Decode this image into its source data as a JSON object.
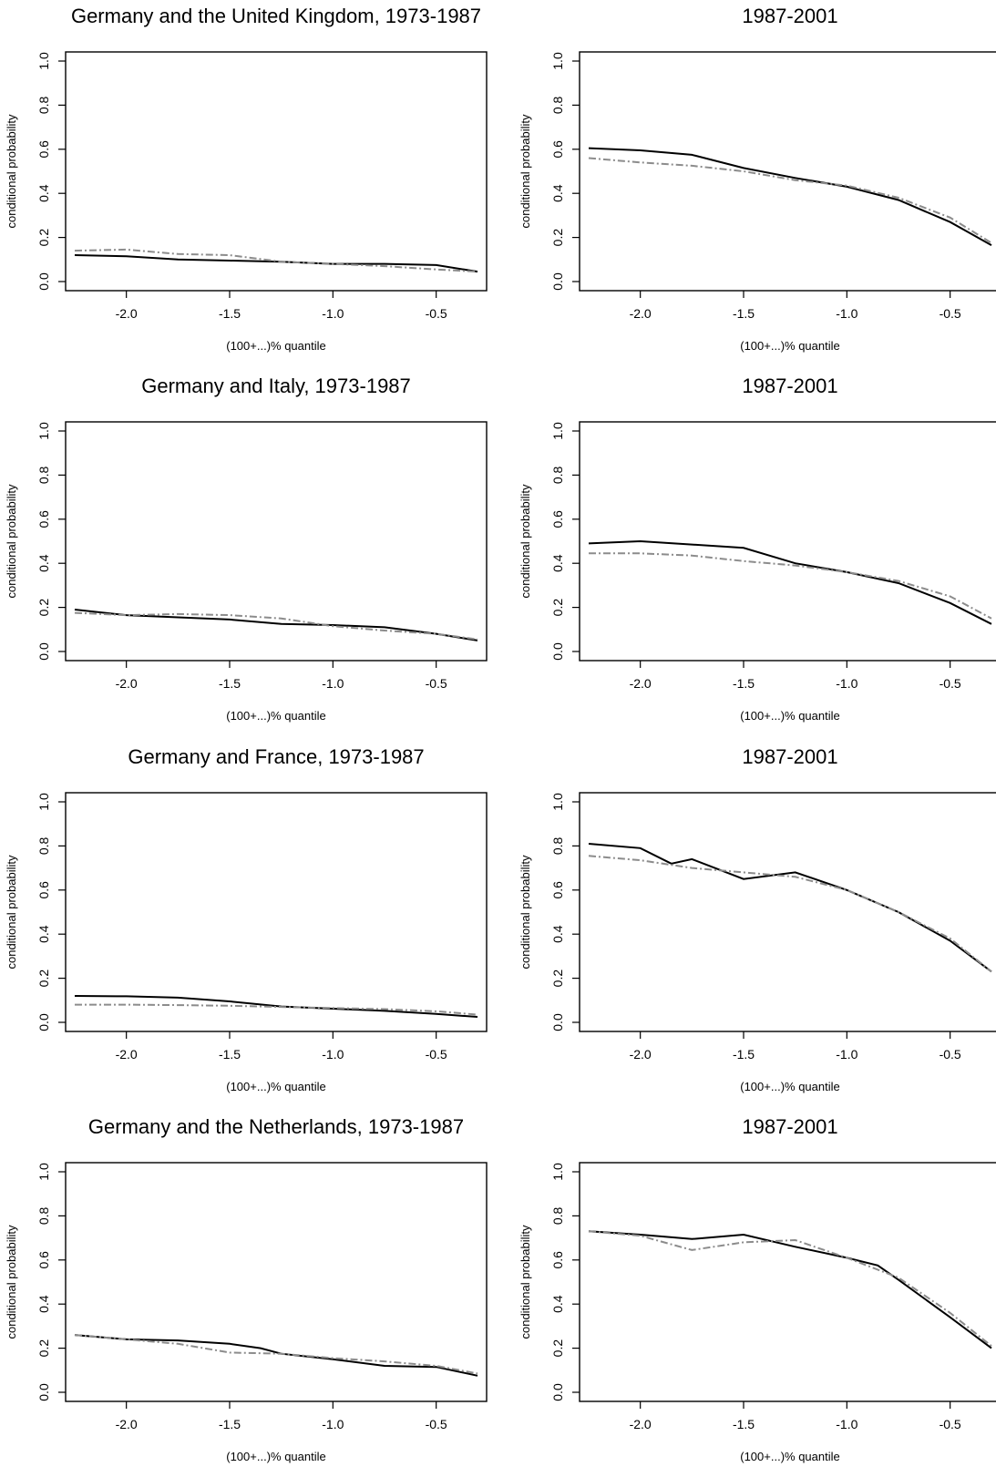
{
  "figure": {
    "panels": [
      {
        "title": "Germany and the United Kingdom, 1973-1987"
      },
      {
        "title": "1987-2001"
      },
      {
        "title": "Germany and Italy, 1973-1987"
      },
      {
        "title": "1987-2001"
      },
      {
        "title": "Germany and France, 1973-1987"
      },
      {
        "title": "1987-2001"
      },
      {
        "title": "Germany and the Netherlands, 1973-1987"
      },
      {
        "title": "1987-2001"
      }
    ]
  },
  "colors": {
    "series_solid": "#000000",
    "series_dashed": "#8c8c8c",
    "axis": "#000000"
  },
  "chart_data": [
    {
      "type": "line",
      "title": "Germany and the United Kingdom, 1973-1987",
      "xlabel": "(100+...)% quantile",
      "ylabel": "conditional probability",
      "xlim": [
        -2.25,
        -0.3
      ],
      "ylim": [
        0,
        1
      ],
      "xticks": [
        "-2.0",
        "-1.5",
        "-1.0",
        "-0.5"
      ],
      "yticks": [
        "0.0",
        "0.2",
        "0.4",
        "0.6",
        "0.8",
        "1.0"
      ],
      "series": [
        {
          "x": [
            -2.25,
            -2.0,
            -1.75,
            -1.5,
            -1.25,
            -1.0,
            -0.75,
            -0.5,
            -0.3
          ],
          "y": [
            0.12,
            0.115,
            0.1,
            0.095,
            0.09,
            0.08,
            0.08,
            0.075,
            0.045
          ]
        },
        {
          "x": [
            -2.25,
            -2.0,
            -1.75,
            -1.5,
            -1.25,
            -1.0,
            -0.75,
            -0.5,
            -0.3
          ],
          "y": [
            0.14,
            0.145,
            0.125,
            0.12,
            0.09,
            0.08,
            0.07,
            0.055,
            0.045
          ]
        }
      ]
    },
    {
      "type": "line",
      "title": "1987-2001",
      "xlabel": "(100+...)% quantile",
      "ylabel": "conditional probability",
      "xlim": [
        -2.25,
        -0.3
      ],
      "ylim": [
        0,
        1
      ],
      "xticks": [
        "-2.0",
        "-1.5",
        "-1.0",
        "-0.5"
      ],
      "yticks": [
        "0.0",
        "0.2",
        "0.4",
        "0.6",
        "0.8",
        "1.0"
      ],
      "series": [
        {
          "x": [
            -2.25,
            -2.0,
            -1.75,
            -1.5,
            -1.25,
            -1.0,
            -0.75,
            -0.5,
            -0.3
          ],
          "y": [
            0.605,
            0.595,
            0.575,
            0.515,
            0.47,
            0.43,
            0.37,
            0.27,
            0.165
          ]
        },
        {
          "x": [
            -2.25,
            -2.0,
            -1.75,
            -1.5,
            -1.25,
            -1.0,
            -0.75,
            -0.5,
            -0.3
          ],
          "y": [
            0.56,
            0.54,
            0.525,
            0.5,
            0.46,
            0.435,
            0.38,
            0.29,
            0.175
          ]
        }
      ]
    },
    {
      "type": "line",
      "title": "Germany and Italy, 1973-1987",
      "xlabel": "(100+...)% quantile",
      "ylabel": "conditional probability",
      "xlim": [
        -2.25,
        -0.3
      ],
      "ylim": [
        0,
        1
      ],
      "xticks": [
        "-2.0",
        "-1.5",
        "-1.0",
        "-0.5"
      ],
      "yticks": [
        "0.0",
        "0.2",
        "0.4",
        "0.6",
        "0.8",
        "1.0"
      ],
      "series": [
        {
          "x": [
            -2.25,
            -2.0,
            -1.75,
            -1.5,
            -1.25,
            -1.0,
            -0.75,
            -0.5,
            -0.3
          ],
          "y": [
            0.19,
            0.165,
            0.155,
            0.145,
            0.125,
            0.12,
            0.11,
            0.08,
            0.05
          ]
        },
        {
          "x": [
            -2.25,
            -2.0,
            -1.75,
            -1.5,
            -1.25,
            -1.0,
            -0.75,
            -0.5,
            -0.3
          ],
          "y": [
            0.175,
            0.165,
            0.17,
            0.165,
            0.15,
            0.115,
            0.095,
            0.08,
            0.055
          ]
        }
      ]
    },
    {
      "type": "line",
      "title": "1987-2001",
      "xlabel": "(100+...)% quantile",
      "ylabel": "conditional probability",
      "xlim": [
        -2.25,
        -0.3
      ],
      "ylim": [
        0,
        1
      ],
      "xticks": [
        "-2.0",
        "-1.5",
        "-1.0",
        "-0.5"
      ],
      "yticks": [
        "0.0",
        "0.2",
        "0.4",
        "0.6",
        "0.8",
        "1.0"
      ],
      "series": [
        {
          "x": [
            -2.25,
            -2.0,
            -1.75,
            -1.5,
            -1.25,
            -1.0,
            -0.75,
            -0.5,
            -0.3
          ],
          "y": [
            0.49,
            0.5,
            0.485,
            0.47,
            0.4,
            0.36,
            0.31,
            0.22,
            0.125
          ]
        },
        {
          "x": [
            -2.25,
            -2.0,
            -1.75,
            -1.5,
            -1.25,
            -1.0,
            -0.75,
            -0.5,
            -0.3
          ],
          "y": [
            0.445,
            0.445,
            0.435,
            0.41,
            0.39,
            0.36,
            0.32,
            0.25,
            0.15
          ]
        }
      ]
    },
    {
      "type": "line",
      "title": "Germany and France, 1973-1987",
      "xlabel": "(100+...)% quantile",
      "ylabel": "conditional probability",
      "xlim": [
        -2.25,
        -0.3
      ],
      "ylim": [
        0,
        1
      ],
      "xticks": [
        "-2.0",
        "-1.5",
        "-1.0",
        "-0.5"
      ],
      "yticks": [
        "0.0",
        "0.2",
        "0.4",
        "0.6",
        "0.8",
        "1.0"
      ],
      "series": [
        {
          "x": [
            -2.25,
            -2.0,
            -1.75,
            -1.5,
            -1.25,
            -1.0,
            -0.75,
            -0.5,
            -0.3
          ],
          "y": [
            0.12,
            0.118,
            0.112,
            0.095,
            0.072,
            0.062,
            0.052,
            0.038,
            0.025
          ]
        },
        {
          "x": [
            -2.25,
            -2.0,
            -1.75,
            -1.5,
            -1.25,
            -1.0,
            -0.75,
            -0.5,
            -0.3
          ],
          "y": [
            0.08,
            0.08,
            0.078,
            0.075,
            0.07,
            0.065,
            0.06,
            0.05,
            0.035
          ]
        }
      ]
    },
    {
      "type": "line",
      "title": "1987-2001",
      "xlabel": "(100+...)% quantile",
      "ylabel": "conditional probability",
      "xlim": [
        -2.25,
        -0.3
      ],
      "ylim": [
        0,
        1
      ],
      "xticks": [
        "-2.0",
        "-1.5",
        "-1.0",
        "-0.5"
      ],
      "yticks": [
        "0.0",
        "0.2",
        "0.4",
        "0.6",
        "0.8",
        "1.0"
      ],
      "series": [
        {
          "x": [
            -2.25,
            -2.0,
            -1.85,
            -1.75,
            -1.5,
            -1.25,
            -1.0,
            -0.75,
            -0.5,
            -0.3
          ],
          "y": [
            0.81,
            0.79,
            0.72,
            0.74,
            0.65,
            0.68,
            0.6,
            0.5,
            0.37,
            0.23
          ]
        },
        {
          "x": [
            -2.25,
            -2.0,
            -1.75,
            -1.5,
            -1.25,
            -1.0,
            -0.75,
            -0.5,
            -0.3
          ],
          "y": [
            0.755,
            0.735,
            0.7,
            0.68,
            0.66,
            0.6,
            0.5,
            0.38,
            0.23
          ]
        }
      ]
    },
    {
      "type": "line",
      "title": "Germany and the Netherlands, 1973-1987",
      "xlabel": "(100+...)% quantile",
      "ylabel": "conditional probability",
      "xlim": [
        -2.25,
        -0.3
      ],
      "ylim": [
        0,
        1
      ],
      "xticks": [
        "-2.0",
        "-1.5",
        "-1.0",
        "-0.5"
      ],
      "yticks": [
        "0.0",
        "0.2",
        "0.4",
        "0.6",
        "0.8",
        "1.0"
      ],
      "series": [
        {
          "x": [
            -2.25,
            -2.0,
            -1.75,
            -1.5,
            -1.35,
            -1.25,
            -1.0,
            -0.75,
            -0.5,
            -0.3
          ],
          "y": [
            0.26,
            0.24,
            0.235,
            0.22,
            0.2,
            0.175,
            0.15,
            0.12,
            0.115,
            0.075
          ]
        },
        {
          "x": [
            -2.25,
            -2.0,
            -1.75,
            -1.5,
            -1.25,
            -1.0,
            -0.75,
            -0.5,
            -0.3
          ],
          "y": [
            0.26,
            0.24,
            0.22,
            0.18,
            0.175,
            0.155,
            0.14,
            0.12,
            0.085
          ]
        }
      ]
    },
    {
      "type": "line",
      "title": "1987-2001",
      "xlabel": "(100+...)% quantile",
      "ylabel": "conditional probability",
      "xlim": [
        -2.25,
        -0.3
      ],
      "ylim": [
        0,
        1
      ],
      "xticks": [
        "-2.0",
        "-1.5",
        "-1.0",
        "-0.5"
      ],
      "yticks": [
        "0.0",
        "0.2",
        "0.4",
        "0.6",
        "0.8",
        "1.0"
      ],
      "series": [
        {
          "x": [
            -2.25,
            -2.0,
            -1.75,
            -1.5,
            -1.25,
            -1.0,
            -0.85,
            -0.75,
            -0.5,
            -0.3
          ],
          "y": [
            0.73,
            0.715,
            0.695,
            0.715,
            0.66,
            0.61,
            0.575,
            0.51,
            0.34,
            0.2
          ]
        },
        {
          "x": [
            -2.25,
            -2.0,
            -1.75,
            -1.5,
            -1.25,
            -1.0,
            -0.75,
            -0.5,
            -0.3
          ],
          "y": [
            0.73,
            0.71,
            0.645,
            0.68,
            0.69,
            0.61,
            0.52,
            0.36,
            0.21
          ]
        }
      ]
    }
  ]
}
